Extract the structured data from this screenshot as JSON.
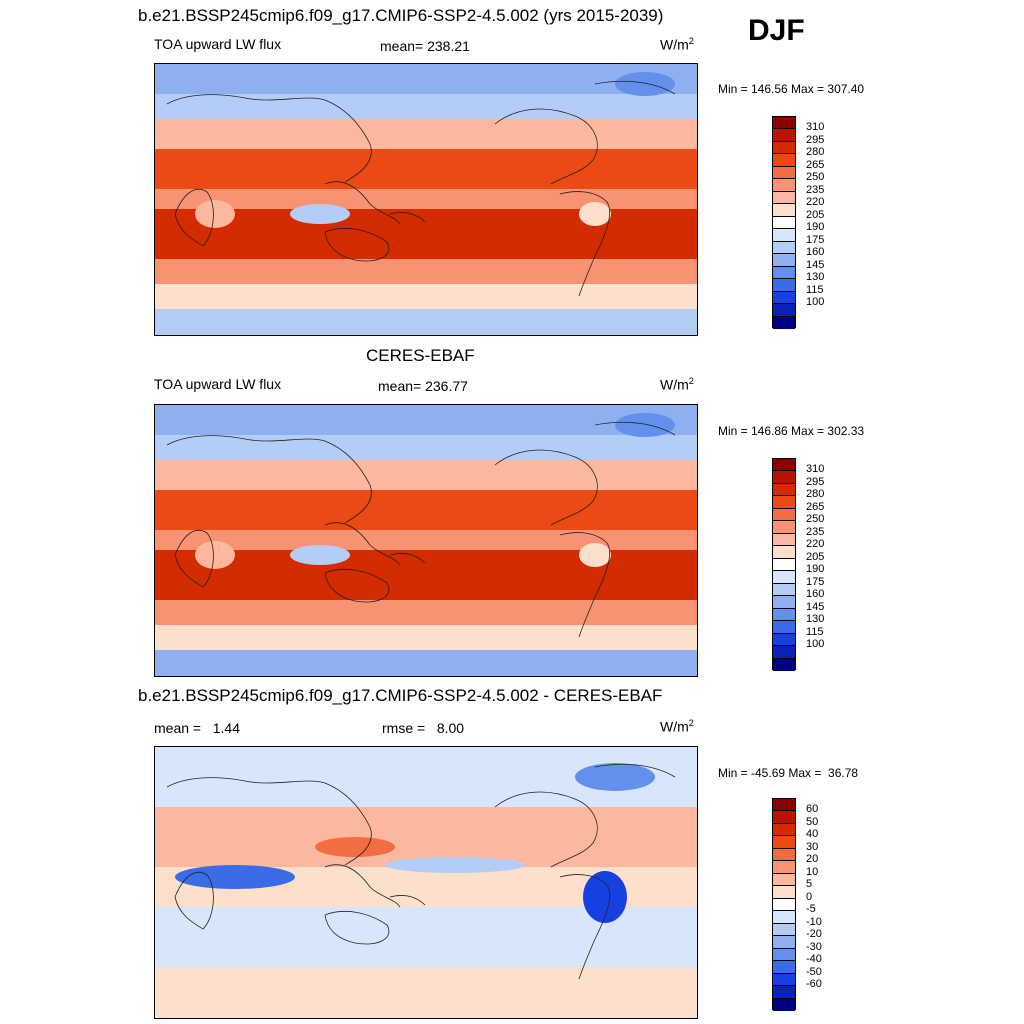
{
  "title_main": "b.e21.BSSP245cmip6.f09_g17.CMIP6-SSP2-4.5.002 (yrs 2015-2039)",
  "season": "DJF",
  "panels": [
    {
      "var_label": "TOA upward LW flux",
      "stat": "mean= 238.21",
      "units": "W/m",
      "units_sup": "2",
      "minmax": "Min = 146.56 Max = 307.40",
      "type": "abs"
    },
    {
      "title": "CERES-EBAF",
      "var_label": "TOA upward LW flux",
      "stat": "mean= 236.77",
      "units": "W/m",
      "units_sup": "2",
      "minmax": "Min = 146.86 Max = 302.33",
      "type": "abs"
    },
    {
      "title": "b.e21.BSSP245cmip6.f09_g17.CMIP6-SSP2-4.5.002 - CERES-EBAF",
      "var_label": "mean =   1.44",
      "stat": "rmse =   8.00",
      "units": "W/m",
      "units_sup": "2",
      "minmax": "Min = -45.69 Max =  36.78",
      "type": "diff"
    }
  ],
  "colorbar_abs": {
    "levels": [
      "310",
      "295",
      "280",
      "265",
      "250",
      "235",
      "220",
      "205",
      "190",
      "175",
      "160",
      "145",
      "130",
      "115",
      "100"
    ],
    "colors": [
      "#8b0000",
      "#b81400",
      "#d42c00",
      "#ec4a14",
      "#f36d42",
      "#f79272",
      "#fbb89e",
      "#fde0cc",
      "#ffffff",
      "#d8e6fb",
      "#b4cdf6",
      "#8eb0f1",
      "#6390ec",
      "#3a6ce8",
      "#1640e0",
      "#0a22b8",
      "#000080"
    ]
  },
  "colorbar_diff": {
    "levels": [
      "60",
      "50",
      "40",
      "30",
      "20",
      "10",
      "5",
      "0",
      "-5",
      "-10",
      "-20",
      "-30",
      "-40",
      "-50",
      "-60"
    ],
    "colors": [
      "#8b0000",
      "#b81400",
      "#d42c00",
      "#ec4a14",
      "#f36d42",
      "#f79272",
      "#fbb89e",
      "#fde0cc",
      "#ffffff",
      "#d8e6fb",
      "#b4cdf6",
      "#8eb0f1",
      "#6390ec",
      "#3a6ce8",
      "#1640e0",
      "#0a22b8",
      "#000080"
    ]
  }
}
